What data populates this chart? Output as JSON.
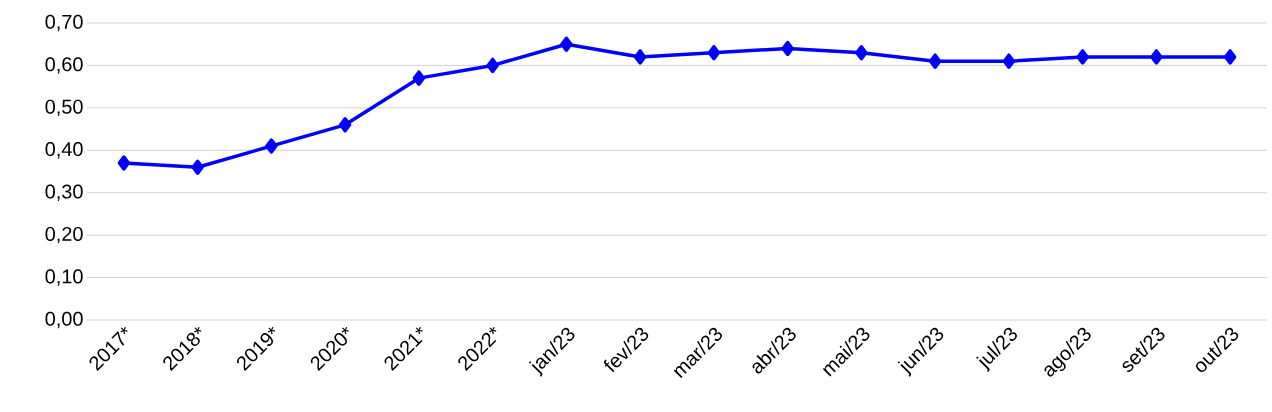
{
  "chart_data": {
    "type": "line",
    "categories": [
      "2017*",
      "2018*",
      "2019*",
      "2020*",
      "2021*",
      "2022*",
      "jan/23",
      "fev/23",
      "mar/23",
      "abr/23",
      "mai/23",
      "jun/23",
      "jul/23",
      "ago/23",
      "set/23",
      "out/23"
    ],
    "series": [
      {
        "color": "#0000ff",
        "values": [
          0.37,
          0.36,
          0.41,
          0.46,
          0.57,
          0.6,
          0.65,
          0.62,
          0.63,
          0.64,
          0.63,
          0.61,
          0.61,
          0.62,
          0.62,
          0.62
        ]
      }
    ],
    "ylim": [
      0,
      0.7
    ],
    "yticks": [
      {
        "value": 0,
        "label": "0,00"
      },
      {
        "value": 0.1,
        "label": "0,10"
      },
      {
        "value": 0.2,
        "label": "0,20"
      },
      {
        "value": 0.3,
        "label": "0,30"
      },
      {
        "value": 0.4,
        "label": "0,40"
      },
      {
        "value": 0.5,
        "label": "0,50"
      },
      {
        "value": 0.6,
        "label": "0,60"
      },
      {
        "value": 0.7,
        "label": "0,70"
      }
    ],
    "grid": "y",
    "marker": "diamond",
    "line_style": "solid"
  }
}
